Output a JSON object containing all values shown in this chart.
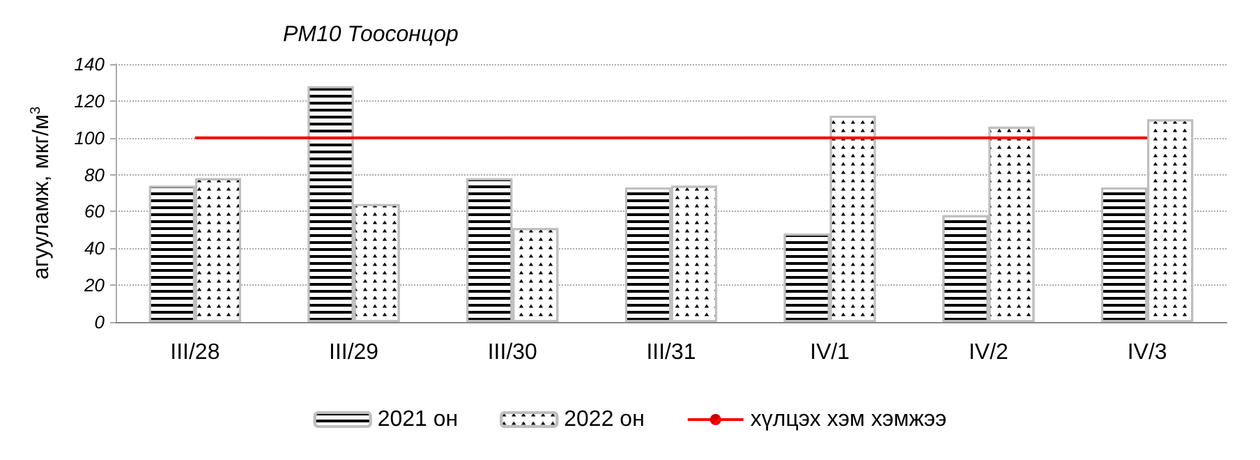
{
  "chart_data": {
    "type": "bar",
    "title": "PM10 Тоосонцор",
    "ylabel": "агууламж, мкг/м$^{3}$",
    "categories": [
      "III/28",
      "III/29",
      "III/30",
      "III/31",
      "IV/1",
      "IV/2",
      "IV/3"
    ],
    "series": [
      {
        "name": "2021 он",
        "color": "#ffffff",
        "values": [
          74,
          128,
          78,
          73,
          48,
          58,
          73
        ]
      },
      {
        "name": "2022 он",
        "color": "#ffffff",
        "values": [
          78,
          64,
          51,
          74,
          112,
          106,
          110
        ]
      },
      {
        "name": "хүлцэх хэм хэмжээ",
        "type": "line",
        "color": "#ff0000",
        "values": [
          100,
          100,
          100,
          100,
          100,
          100,
          100
        ]
      }
    ],
    "ylim": [
      0,
      140
    ],
    "yticks": [
      0,
      20,
      40,
      60,
      80,
      100,
      120,
      140
    ],
    "grid": "y",
    "legend": "bottom",
    "marker": "none",
    "line_style": "solid"
  }
}
